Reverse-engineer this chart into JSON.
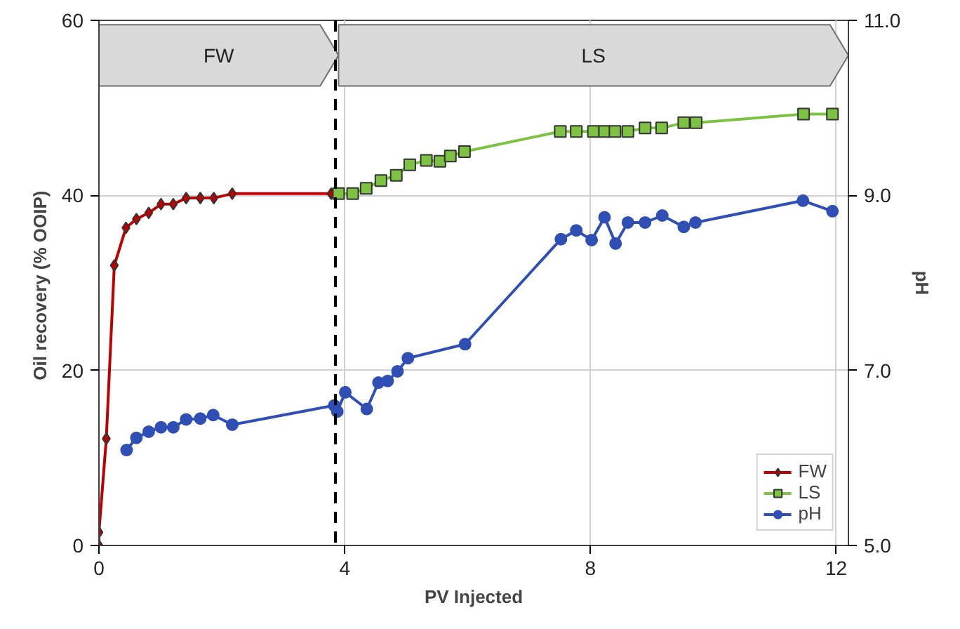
{
  "chart_data": {
    "type": "line",
    "xlabel": "PV Injected",
    "ylabel": "Oil recovery  (% OOIP)",
    "y2label": "pH",
    "xlim": [
      0,
      12.2
    ],
    "xticks": [
      0,
      4,
      8,
      12
    ],
    "ylim": [
      0,
      60
    ],
    "yticks": [
      0,
      20,
      40,
      60
    ],
    "y2lim": [
      5,
      11
    ],
    "y2ticks": [
      {
        "value": 5,
        "label": "5.0"
      },
      {
        "value": 7,
        "label": "7.0"
      },
      {
        "value": 9,
        "label": "9.0"
      },
      {
        "value": 11,
        "label": "11.0"
      }
    ],
    "grid": true,
    "legend": "bottom right",
    "series": [
      {
        "name": "FW",
        "color": "#c00000",
        "marker": "diamond",
        "x": [
          0,
          0.0,
          0.12,
          0.25,
          0.44,
          0.61,
          0.81,
          1.01,
          1.21,
          1.42,
          1.65,
          1.87,
          2.17,
          3.78
        ],
        "values": [
          0,
          1.5,
          12.2,
          32,
          36.3,
          37.3,
          38,
          39,
          39,
          39.7,
          39.7,
          39.7,
          40.2,
          40.2
        ]
      },
      {
        "name": "LS",
        "color": "#7dc242",
        "marker": "square",
        "x": [
          3.9,
          4.13,
          4.35,
          4.59,
          4.84,
          5.06,
          5.33,
          5.55,
          5.72,
          5.95,
          7.51,
          7.77,
          8.05,
          8.23,
          8.4,
          8.61,
          8.89,
          9.16,
          9.52,
          9.72,
          11.47,
          11.94
        ],
        "values": [
          40.2,
          40.2,
          40.8,
          41.7,
          42.3,
          43.5,
          44.0,
          43.9,
          44.5,
          45.0,
          47.3,
          47.3,
          47.3,
          47.3,
          47.3,
          47.3,
          47.7,
          47.7,
          48.3,
          48.3,
          49.3,
          49.3
        ]
      },
      {
        "name": "pH",
        "color": "#2f4fb5",
        "marker": "circle",
        "axis": "y2",
        "x": [
          0.45,
          0.61,
          0.81,
          1.01,
          1.21,
          1.42,
          1.65,
          1.86,
          2.17,
          3.83,
          3.88,
          4.01,
          4.36,
          4.55,
          4.7,
          4.86,
          5.03,
          5.96,
          7.52,
          7.77,
          8.02,
          8.23,
          8.41,
          8.61,
          8.89,
          9.17,
          9.52,
          9.71,
          11.46,
          11.94
        ],
        "values": [
          6.09,
          6.23,
          6.3,
          6.35,
          6.35,
          6.44,
          6.45,
          6.49,
          6.38,
          6.6,
          6.53,
          6.75,
          6.56,
          6.86,
          6.88,
          6.99,
          7.14,
          7.3,
          8.5,
          8.6,
          8.49,
          8.75,
          8.45,
          8.69,
          8.69,
          8.77,
          8.64,
          8.69,
          8.94,
          8.82
        ]
      }
    ],
    "ref_lines": [
      {
        "axis": "x",
        "value": 3.85,
        "line_style": "dashed",
        "color": "#000000"
      }
    ],
    "bands": [
      {
        "axis": "x",
        "from": 0,
        "to": 3.9,
        "label": "FW",
        "color": "#d9d9d9"
      },
      {
        "axis": "x",
        "from": 3.9,
        "to": 12.2,
        "label": "LS",
        "color": "#d9d9d9"
      }
    ]
  }
}
